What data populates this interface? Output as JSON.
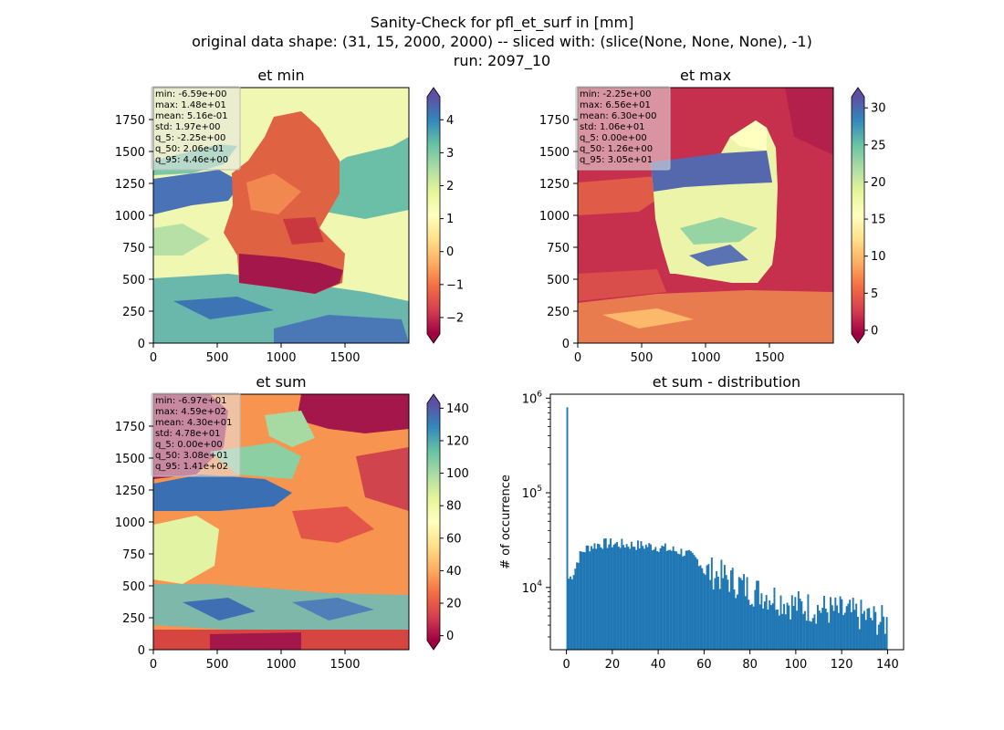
{
  "figure": {
    "title_lines": [
      "Sanity-Check for pfl_et_surf in [mm]",
      "original data shape: (31, 15, 2000, 2000) -- sliced with: (slice(None, None, None), -1)",
      "run: 2097_10"
    ]
  },
  "colors": {
    "hist_bar": "#1f77b4",
    "stats_box": "#e8e8e8"
  },
  "colormap": "Spectral",
  "chart_data": [
    {
      "type": "heatmap",
      "title": "et min",
      "x_ticks": [
        0,
        500,
        1000,
        1500
      ],
      "y_ticks": [
        0,
        250,
        500,
        750,
        1000,
        1250,
        1500,
        1750
      ],
      "xlim": [
        0,
        2000
      ],
      "ylim": [
        0,
        2000
      ],
      "colorbar": {
        "min": -2.5,
        "max": 4.7,
        "ticks": [
          -2,
          -1,
          0,
          1,
          2,
          3,
          4
        ],
        "tick_labels": [
          "−2",
          "−1",
          "0",
          "1",
          "2",
          "3",
          "4"
        ],
        "extend": "both"
      },
      "stats": [
        "min: -6.59e+00",
        "max: 1.48e+01",
        "mean: 5.16e-01",
        "std: 1.97e+00",
        "q_5: -2.25e+00",
        "q_50: 2.06e-01",
        "q_95: 4.46e+00"
      ]
    },
    {
      "type": "heatmap",
      "title": "et max",
      "x_ticks": [
        0,
        500,
        1000,
        1500
      ],
      "y_ticks": [
        0,
        250,
        500,
        750,
        1000,
        1250,
        1500,
        1750
      ],
      "xlim": [
        0,
        2000
      ],
      "ylim": [
        0,
        2000
      ],
      "colorbar": {
        "min": -0.5,
        "max": 31.5,
        "ticks": [
          0,
          5,
          10,
          15,
          20,
          25,
          30
        ],
        "tick_labels": [
          "0",
          "5",
          "10",
          "15",
          "20",
          "25",
          "30"
        ],
        "extend": "both"
      },
      "stats": [
        "min: -2.25e+00",
        "max: 6.56e+01",
        "mean: 6.30e+00",
        "std: 1.06e+01",
        "q_5: 0.00e+00",
        "q_50: 1.26e+00",
        "q_95: 3.05e+01"
      ]
    },
    {
      "type": "heatmap",
      "title": "et sum",
      "x_ticks": [
        0,
        500,
        1000,
        1500
      ],
      "y_ticks": [
        0,
        250,
        500,
        750,
        1000,
        1250,
        1500,
        1750
      ],
      "xlim": [
        0,
        2000
      ],
      "ylim": [
        0,
        2000
      ],
      "colorbar": {
        "min": -3,
        "max": 143,
        "ticks": [
          0,
          20,
          40,
          60,
          80,
          100,
          120,
          140
        ],
        "tick_labels": [
          "0",
          "20",
          "40",
          "60",
          "80",
          "100",
          "120",
          "140"
        ],
        "extend": "both"
      },
      "stats": [
        "min: -6.97e+01",
        "max: 4.59e+02",
        "mean: 4.30e+01",
        "std: 4.78e+01",
        "q_5: 0.00e+00",
        "q_50: 3.08e+01",
        "q_95: 1.41e+02"
      ]
    },
    {
      "type": "bar",
      "title": "et sum - distribution",
      "ylabel": "# of occurrence",
      "yscale": "log",
      "xlim": [
        -7,
        147
      ],
      "ylim": [
        2200,
        1100000
      ],
      "x_ticks": [
        0,
        20,
        40,
        60,
        80,
        100,
        120,
        140
      ],
      "y_ticks": [
        {
          "value": 10000,
          "base": "10",
          "exp": "4"
        },
        {
          "value": 100000,
          "base": "10",
          "exp": "5"
        },
        {
          "value": 1000000,
          "base": "10",
          "exp": "6"
        }
      ],
      "bin_width": 0.7,
      "anchors": [
        [
          0.0,
          800000
        ],
        [
          0.35,
          12000
        ],
        [
          2,
          13000
        ],
        [
          3.5,
          15000
        ],
        [
          5,
          20000
        ],
        [
          7,
          24000
        ],
        [
          10,
          27000
        ],
        [
          15,
          29000
        ],
        [
          20,
          29000
        ],
        [
          30,
          28000
        ],
        [
          40,
          27000
        ],
        [
          45,
          25000
        ],
        [
          50,
          24000
        ],
        [
          55,
          21000
        ],
        [
          58,
          19000
        ],
        [
          60,
          15000
        ],
        [
          65,
          14000
        ],
        [
          70,
          12500
        ],
        [
          75,
          11000
        ],
        [
          80,
          9500
        ],
        [
          90,
          8000
        ],
        [
          100,
          6500
        ],
        [
          110,
          6000
        ],
        [
          120,
          5500
        ],
        [
          130,
          5000
        ],
        [
          140,
          4200
        ]
      ]
    }
  ]
}
